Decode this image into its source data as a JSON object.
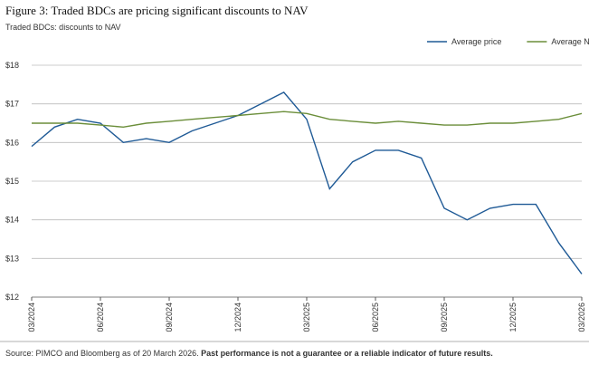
{
  "chart_data": {
    "type": "line",
    "title": "Figure 3: Traded BDCs are pricing significant discounts to NAV",
    "subtitle": "Traded BDCs: discounts to NAV",
    "source": "Source: PIMCO and Bloomberg as of 20 March 2026.",
    "source_emphasis": "Past performance is not a guarantee or a reliable indicator of future results.",
    "x": [
      "03/2024",
      "04/2024",
      "05/2024",
      "06/2024",
      "07/2024",
      "08/2024",
      "09/2024",
      "10/2024",
      "11/2024",
      "12/2024",
      "01/2025",
      "02/2025",
      "03/2025",
      "04/2025",
      "05/2025",
      "06/2025",
      "07/2025",
      "08/2025",
      "09/2025",
      "10/2025",
      "11/2025",
      "12/2025",
      "01/2026",
      "02/2026",
      "03/2026"
    ],
    "xlim": [
      "03/2024",
      "03/2026"
    ],
    "xticks": [
      "03/2024",
      "06/2024",
      "09/2024",
      "12/2024",
      "03/2025",
      "06/2025",
      "09/2025",
      "12/2025",
      "03/2026"
    ],
    "ylim": [
      12,
      18
    ],
    "yticks": [
      {
        "value": 12,
        "label": "$12"
      },
      {
        "value": 13,
        "label": "$13"
      },
      {
        "value": 14,
        "label": "$14"
      },
      {
        "value": 15,
        "label": "$15"
      },
      {
        "value": 16,
        "label": "$16"
      },
      {
        "value": 17,
        "label": "$17"
      },
      {
        "value": 18,
        "label": "$18"
      }
    ],
    "grid": true,
    "legend": "top-right",
    "series": [
      {
        "name": "Average price",
        "color": "#1f5a96",
        "values": [
          15.9,
          16.4,
          16.6,
          16.5,
          16.0,
          16.1,
          16.0,
          16.3,
          16.5,
          16.7,
          17.0,
          17.3,
          16.6,
          14.8,
          15.5,
          15.8,
          15.8,
          15.6,
          14.3,
          14.0,
          14.3,
          14.4,
          14.4,
          13.4,
          12.6
        ]
      },
      {
        "name": "Average NAV",
        "color": "#6b8e3a",
        "values": [
          16.5,
          16.5,
          16.5,
          16.45,
          16.4,
          16.5,
          16.55,
          16.6,
          16.65,
          16.7,
          16.75,
          16.8,
          16.75,
          16.6,
          16.55,
          16.5,
          16.55,
          16.5,
          16.45,
          16.45,
          16.5,
          16.5,
          16.55,
          16.6,
          16.75
        ]
      }
    ]
  }
}
